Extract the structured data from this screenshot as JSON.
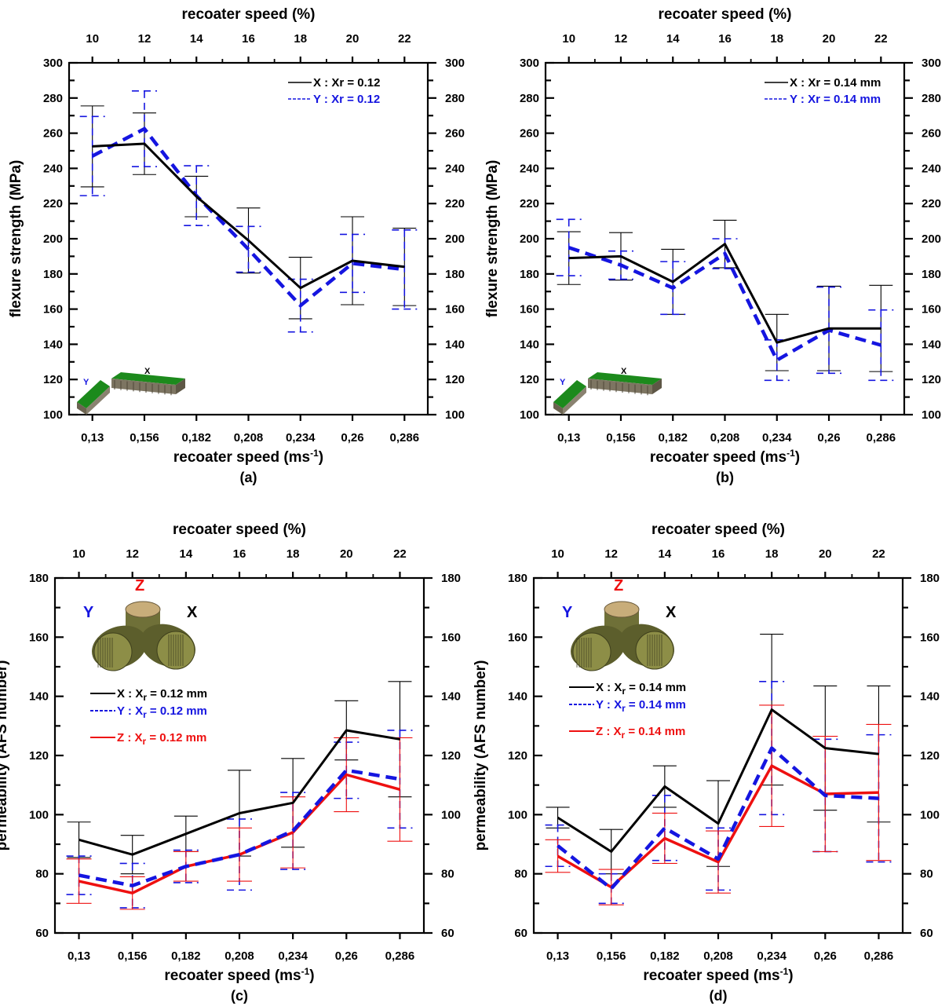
{
  "colors": {
    "X": "#000000",
    "Y": "#1515e0",
    "Z": "#ee1010"
  },
  "chart_data": [
    {
      "id": "a",
      "type": "line",
      "panel_label": "(a)",
      "xlabel": "recoater speed (ms",
      "xlabel_sup": "-1",
      "xlabel_close": ")",
      "x2label": "recoater speed (%)",
      "ylabel": "flexure strength (MPa)",
      "categories": [
        "0,13",
        "0,156",
        "0,182",
        "0,208",
        "0,234",
        "0,26",
        "0,286"
      ],
      "top_categories": [
        "10",
        "12",
        "14",
        "16",
        "18",
        "20",
        "22"
      ],
      "ylim": [
        100,
        300
      ],
      "yticks": [
        100,
        120,
        140,
        160,
        180,
        200,
        220,
        240,
        260,
        280,
        300
      ],
      "legend_placement": "top-right",
      "inset": {
        "type": "bars",
        "label_y": "Y",
        "label_x": "X"
      },
      "series": [
        {
          "key": "X",
          "legend_prefix": "X : Xr = 0.12",
          "legend_sub": "",
          "legend_suffix": "",
          "values": [
            252.5,
            254,
            224,
            199,
            172,
            187.5,
            184
          ],
          "err": [
            23,
            17.5,
            11.5,
            18.5,
            17.5,
            25,
            22
          ]
        },
        {
          "key": "Y",
          "legend_prefix": "Y : Xr = 0.12",
          "legend_sub": "",
          "legend_suffix": "",
          "values": [
            247,
            262.5,
            224.5,
            194,
            162,
            186,
            182.5
          ],
          "err": [
            22.5,
            21.5,
            17,
            13,
            15,
            16.5,
            22.5
          ]
        }
      ]
    },
    {
      "id": "b",
      "type": "line",
      "panel_label": "(b)",
      "xlabel": "recoater speed (ms",
      "xlabel_sup": "-1",
      "xlabel_close": ")",
      "x2label": "recoater speed (%)",
      "ylabel": "flexure strength (MPa)",
      "categories": [
        "0,13",
        "0,156",
        "0,182",
        "0,208",
        "0,234",
        "0,26",
        "0,286"
      ],
      "top_categories": [
        "10",
        "12",
        "14",
        "16",
        "18",
        "20",
        "22"
      ],
      "ylim": [
        100,
        300
      ],
      "yticks": [
        100,
        120,
        140,
        160,
        180,
        200,
        220,
        240,
        260,
        280,
        300
      ],
      "legend_placement": "top-right",
      "inset": {
        "type": "bars",
        "label_y": "Y",
        "label_x": "X"
      },
      "series": [
        {
          "key": "X",
          "legend_prefix": "X : Xr = 0.14 mm",
          "legend_sub": "",
          "legend_suffix": "",
          "values": [
            189,
            190,
            175.5,
            197,
            141,
            149,
            149
          ],
          "err": [
            15,
            13.5,
            18.5,
            13.5,
            16,
            24,
            24.5
          ]
        },
        {
          "key": "Y",
          "legend_prefix": "Y : Xr = 0.14 mm",
          "legend_sub": "",
          "legend_suffix": "",
          "values": [
            195,
            185,
            172,
            191.5,
            131,
            148,
            139.5
          ],
          "err": [
            16,
            8,
            15,
            8.5,
            11.5,
            24.5,
            20
          ]
        }
      ]
    },
    {
      "id": "c",
      "type": "line",
      "panel_label": "(c)",
      "xlabel": "recoater speed (ms",
      "xlabel_sup": "-1",
      "xlabel_close": ")",
      "x2label": "recoater speed (%)",
      "ylabel": "permeability (AFS number)",
      "categories": [
        "0,13",
        "0,156",
        "0,182",
        "0,208",
        "0,234",
        "0,26",
        "0,286"
      ],
      "top_categories": [
        "10",
        "12",
        "14",
        "16",
        "18",
        "20",
        "22"
      ],
      "ylim": [
        60,
        180
      ],
      "yticks": [
        60,
        80,
        100,
        120,
        140,
        160,
        180
      ],
      "legend_placement": "middle-left",
      "inset": {
        "type": "cylinders",
        "label_y": "Y",
        "label_x": "X",
        "label_z": "Z"
      },
      "series": [
        {
          "key": "X",
          "legend_prefix": "X : X",
          "legend_sub": "r",
          "legend_suffix": " = 0.12 mm",
          "values": [
            91.5,
            86.5,
            93.5,
            100.5,
            104,
            128.5,
            125.5
          ],
          "err": [
            6,
            6.5,
            6,
            14.5,
            15,
            10,
            19.5
          ]
        },
        {
          "key": "Y",
          "legend_prefix": "Y : X",
          "legend_sub": "r",
          "legend_suffix": " = 0.12 mm",
          "values": [
            79.5,
            76,
            82.5,
            86.5,
            94.5,
            115,
            112
          ],
          "err": [
            6.5,
            7.5,
            5.5,
            12,
            13,
            9.5,
            16.5
          ]
        },
        {
          "key": "Z",
          "legend_prefix": "Z : X",
          "legend_sub": "r",
          "legend_suffix": " = 0.12 mm",
          "values": [
            77.5,
            73.5,
            82.5,
            86.5,
            94,
            113.5,
            108.5
          ],
          "err": [
            7.5,
            5.5,
            5,
            9,
            12,
            12.5,
            17.5
          ]
        }
      ]
    },
    {
      "id": "d",
      "type": "line",
      "panel_label": "(d)",
      "xlabel": "recoater speed (ms",
      "xlabel_sup": "-1",
      "xlabel_close": ")",
      "x2label": "recoater speed (%)",
      "ylabel": "permeability (AFS number)",
      "categories": [
        "0,13",
        "0,156",
        "0,182",
        "0,208",
        "0,234",
        "0,26",
        "0,286"
      ],
      "top_categories": [
        "10",
        "12",
        "14",
        "16",
        "18",
        "20",
        "22"
      ],
      "ylim": [
        60,
        180
      ],
      "yticks": [
        60,
        80,
        100,
        120,
        140,
        160,
        180
      ],
      "legend_placement": "middle-left",
      "inset": {
        "type": "cylinders",
        "label_y": "Y",
        "label_x": "X",
        "label_z": "Z"
      },
      "series": [
        {
          "key": "X",
          "legend_prefix": "X : X",
          "legend_sub": "r",
          "legend_suffix": " = 0.14 mm",
          "values": [
            99,
            87.5,
            109.5,
            97,
            135.5,
            122.5,
            120.5
          ],
          "err": [
            3.5,
            7.5,
            7,
            14.5,
            25.5,
            21,
            23
          ]
        },
        {
          "key": "Y",
          "legend_prefix": "Y : X",
          "legend_sub": "r",
          "legend_suffix": " = 0.14 mm",
          "values": [
            89.5,
            75,
            95.5,
            85,
            122.5,
            106.5,
            105.5
          ],
          "err": [
            7,
            5,
            11,
            10.5,
            22.5,
            19,
            21.5
          ]
        },
        {
          "key": "Z",
          "legend_prefix": "Z : X",
          "legend_sub": "r",
          "legend_suffix": " = 0.14 mm",
          "values": [
            86,
            75.5,
            92,
            84,
            116.5,
            107,
            107.5
          ],
          "err": [
            5.5,
            6,
            8.5,
            10.5,
            20.5,
            19.5,
            23
          ]
        }
      ]
    }
  ]
}
